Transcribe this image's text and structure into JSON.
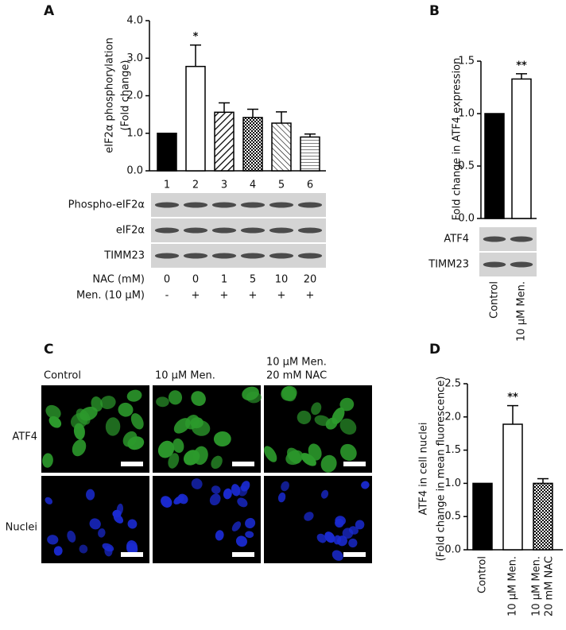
{
  "chart_data": [
    {
      "type": "bar",
      "panel": "A",
      "ylabel": [
        "eIF2α phosphorylation",
        "(Fold change)"
      ],
      "categories": [
        "1",
        "2",
        "3",
        "4",
        "5",
        "6"
      ],
      "values": [
        1.0,
        2.78,
        1.56,
        1.42,
        1.27,
        0.9
      ],
      "errors": [
        null,
        0.57,
        0.25,
        0.22,
        0.3,
        0.08
      ],
      "significance": [
        null,
        "*",
        null,
        null,
        null,
        null
      ],
      "fills": [
        "solid",
        "open",
        "hatch",
        "check",
        "backhatch",
        "hlines"
      ],
      "color": "#000000",
      "ylim": [
        0,
        4
      ],
      "yticks": [
        {
          "value": 0,
          "label": "0.0"
        },
        {
          "value": 1,
          "label": "1.0"
        },
        {
          "value": 2,
          "label": "2.0"
        },
        {
          "value": 3,
          "label": "3.0"
        },
        {
          "value": 4,
          "label": "4.0"
        }
      ],
      "blots": [
        "Phospho-eIF2α",
        "eIF2α",
        "TIMM23"
      ],
      "conditions": [
        {
          "label": "NAC (mM)",
          "values": [
            "0",
            "0",
            "1",
            "5",
            "10",
            "20"
          ]
        },
        {
          "label": "Men. (10 μM)",
          "values": [
            "-",
            "+",
            "+",
            "+",
            "+",
            "+"
          ]
        }
      ]
    },
    {
      "type": "bar",
      "panel": "B",
      "ylabel": [
        "Fold change in ATF4 expression"
      ],
      "categories": [
        "Control",
        "10 μM Men."
      ],
      "values": [
        1.0,
        1.33
      ],
      "errors": [
        null,
        0.05
      ],
      "significance": [
        null,
        "**"
      ],
      "fills": [
        "solid",
        "open"
      ],
      "color": "#000000",
      "ylim": [
        0,
        1.5
      ],
      "yticks": [
        {
          "value": 0,
          "label": "0.0"
        },
        {
          "value": 0.5,
          "label": "0.5"
        },
        {
          "value": 1,
          "label": "1.0"
        },
        {
          "value": 1.5,
          "label": "1.5"
        }
      ],
      "blots": [
        "ATF4",
        "TIMM23"
      ]
    },
    {
      "type": "bar",
      "panel": "D",
      "ylabel": [
        "ATF4 in cell nuclei",
        "(Fold change in mean fluorescence)"
      ],
      "categories": [
        "Control",
        "10 μM Men.",
        [
          "10 μM Men.",
          "20 mM NAC"
        ]
      ],
      "values": [
        1.0,
        1.89,
        1.0
      ],
      "errors": [
        null,
        0.28,
        0.07
      ],
      "significance": [
        null,
        "**",
        null
      ],
      "fills": [
        "solid",
        "open",
        "check"
      ],
      "color": "#000000",
      "ylim": [
        0,
        2.5
      ],
      "yticks": [
        {
          "value": 0,
          "label": "0.0"
        },
        {
          "value": 0.5,
          "label": "0.5"
        },
        {
          "value": 1,
          "label": "1.0"
        },
        {
          "value": 1.5,
          "label": "1.5"
        },
        {
          "value": 2,
          "label": "2.0"
        },
        {
          "value": 2.5,
          "label": "2.5"
        }
      ]
    }
  ],
  "panel_c": {
    "panel": "C",
    "columns": [
      "Control",
      "10 μM Men.",
      [
        "10 μM Men.",
        "20 mM NAC"
      ]
    ],
    "rows": [
      "ATF4",
      "Nuclei"
    ]
  }
}
